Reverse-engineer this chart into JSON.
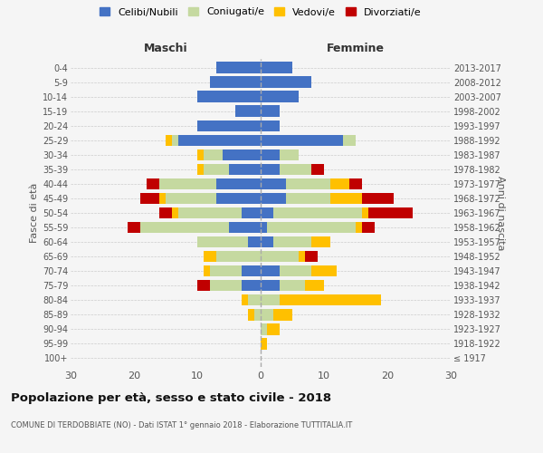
{
  "age_groups": [
    "100+",
    "95-99",
    "90-94",
    "85-89",
    "80-84",
    "75-79",
    "70-74",
    "65-69",
    "60-64",
    "55-59",
    "50-54",
    "45-49",
    "40-44",
    "35-39",
    "30-34",
    "25-29",
    "20-24",
    "15-19",
    "10-14",
    "5-9",
    "0-4"
  ],
  "birth_years": [
    "≤ 1917",
    "1918-1922",
    "1923-1927",
    "1928-1932",
    "1933-1937",
    "1938-1942",
    "1943-1947",
    "1948-1952",
    "1953-1957",
    "1958-1962",
    "1963-1967",
    "1968-1972",
    "1973-1977",
    "1978-1982",
    "1983-1987",
    "1988-1992",
    "1993-1997",
    "1998-2002",
    "2003-2007",
    "2008-2012",
    "2013-2017"
  ],
  "maschi": {
    "celibi": [
      0,
      0,
      0,
      0,
      0,
      3,
      3,
      0,
      2,
      5,
      3,
      7,
      7,
      5,
      6,
      13,
      10,
      4,
      10,
      8,
      7
    ],
    "coniugati": [
      0,
      0,
      0,
      1,
      2,
      5,
      5,
      7,
      8,
      14,
      10,
      8,
      9,
      4,
      3,
      1,
      0,
      0,
      0,
      0,
      0
    ],
    "vedovi": [
      0,
      0,
      0,
      1,
      1,
      0,
      1,
      2,
      0,
      0,
      1,
      1,
      0,
      1,
      1,
      1,
      0,
      0,
      0,
      0,
      0
    ],
    "divorziati": [
      0,
      0,
      0,
      0,
      0,
      2,
      0,
      0,
      0,
      2,
      2,
      3,
      2,
      0,
      0,
      0,
      0,
      0,
      0,
      0,
      0
    ]
  },
  "femmine": {
    "nubili": [
      0,
      0,
      0,
      0,
      0,
      3,
      3,
      0,
      2,
      1,
      2,
      4,
      4,
      3,
      3,
      13,
      3,
      3,
      6,
      8,
      5
    ],
    "coniugate": [
      0,
      0,
      1,
      2,
      3,
      4,
      5,
      6,
      6,
      14,
      14,
      7,
      7,
      5,
      3,
      2,
      0,
      0,
      0,
      0,
      0
    ],
    "vedove": [
      0,
      1,
      2,
      3,
      16,
      3,
      4,
      1,
      3,
      1,
      1,
      5,
      3,
      0,
      0,
      0,
      0,
      0,
      0,
      0,
      0
    ],
    "divorziate": [
      0,
      0,
      0,
      0,
      0,
      0,
      0,
      2,
      0,
      2,
      7,
      5,
      2,
      2,
      0,
      0,
      0,
      0,
      0,
      0,
      0
    ]
  },
  "colors": {
    "celibi": "#4472c4",
    "coniugati": "#c5d9a0",
    "vedovi": "#ffc000",
    "divorziati": "#c00000"
  },
  "xlim": 30,
  "title": "Popolazione per età, sesso e stato civile - 2018",
  "subtitle": "COMUNE DI TERDOBBIATE (NO) - Dati ISTAT 1° gennaio 2018 - Elaborazione TUTTITALIA.IT",
  "ylabel_left": "Fasce di età",
  "ylabel_right": "Anni di nascita",
  "xlabel_maschi": "Maschi",
  "xlabel_femmine": "Femmine",
  "bg_color": "#f5f5f5",
  "grid_color": "#cccccc"
}
